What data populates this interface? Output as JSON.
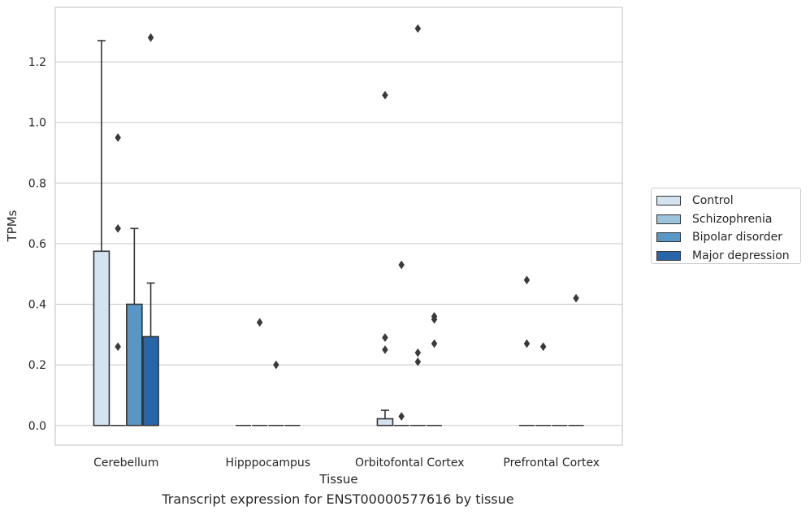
{
  "chart_data": {
    "type": "box",
    "xlabel": "Tissue",
    "ylabel": "TPMs",
    "ylim": [
      -0.065,
      1.38
    ],
    "yticks": [
      0.0,
      0.2,
      0.4,
      0.6,
      0.8,
      1.0,
      1.2
    ],
    "ytick_labels": [
      "0.0",
      "0.2",
      "0.4",
      "0.6",
      "0.8",
      "1.0",
      "1.2"
    ],
    "grid": "horizontal",
    "legend_position": "right",
    "categories": [
      "Cerebellum",
      "Hipppocampus",
      "Orbitofontal Cortex",
      "Prefrontal Cortex"
    ],
    "series": [
      {
        "name": "Control",
        "color": "#d3e3f2",
        "boxes": [
          {
            "q1": 0,
            "median": 0,
            "q3": 0.575,
            "whisker_low": 0,
            "whisker_high": 1.27,
            "outliers": []
          },
          {
            "q1": 0,
            "median": 0,
            "q3": 0,
            "whisker_low": 0,
            "whisker_high": 0,
            "outliers": []
          },
          {
            "q1": 0,
            "median": 0,
            "q3": 0.022,
            "whisker_low": 0,
            "whisker_high": 0.05,
            "outliers": [
              1.09,
              0.29,
              0.25
            ]
          },
          {
            "q1": 0,
            "median": 0,
            "q3": 0,
            "whisker_low": 0,
            "whisker_high": 0,
            "outliers": [
              0.48,
              0.27
            ]
          }
        ]
      },
      {
        "name": "Schizophrenia",
        "color": "#9cc3dd",
        "boxes": [
          {
            "q1": 0,
            "median": 0,
            "q3": 0,
            "whisker_low": 0,
            "whisker_high": 0,
            "outliers": [
              0.95,
              0.65,
              0.26
            ]
          },
          {
            "q1": 0,
            "median": 0,
            "q3": 0,
            "whisker_low": 0,
            "whisker_high": 0,
            "outliers": [
              0.34
            ]
          },
          {
            "q1": 0,
            "median": 0,
            "q3": 0,
            "whisker_low": 0,
            "whisker_high": 0,
            "outliers": [
              0.53,
              0.03
            ]
          },
          {
            "q1": 0,
            "median": 0,
            "q3": 0,
            "whisker_low": 0,
            "whisker_high": 0,
            "outliers": [
              0.26
            ]
          }
        ]
      },
      {
        "name": "Bipolar disorder",
        "color": "#5896c6",
        "boxes": [
          {
            "q1": 0,
            "median": 0,
            "q3": 0.4,
            "whisker_low": 0,
            "whisker_high": 0.65,
            "outliers": []
          },
          {
            "q1": 0,
            "median": 0,
            "q3": 0,
            "whisker_low": 0,
            "whisker_high": 0,
            "outliers": [
              0.2
            ]
          },
          {
            "q1": 0,
            "median": 0,
            "q3": 0,
            "whisker_low": 0,
            "whisker_high": 0,
            "outliers": [
              1.31,
              0.24,
              0.21
            ]
          },
          {
            "q1": 0,
            "median": 0,
            "q3": 0,
            "whisker_low": 0,
            "whisker_high": 0,
            "outliers": []
          }
        ]
      },
      {
        "name": "Major depression",
        "color": "#2766a8",
        "boxes": [
          {
            "q1": 0,
            "median": 0,
            "q3": 0.293,
            "whisker_low": 0,
            "whisker_high": 0.47,
            "outliers": [
              1.28
            ]
          },
          {
            "q1": 0,
            "median": 0,
            "q3": 0,
            "whisker_low": 0,
            "whisker_high": 0,
            "outliers": []
          },
          {
            "q1": 0,
            "median": 0,
            "q3": 0,
            "whisker_low": 0,
            "whisker_high": 0,
            "outliers": [
              0.36,
              0.35,
              0.27
            ]
          },
          {
            "q1": 0,
            "median": 0,
            "q3": 0,
            "whisker_low": 0,
            "whisker_high": 0,
            "outliers": [
              0.42
            ]
          }
        ]
      }
    ]
  },
  "caption": "Transcript expression for ENST00000577616 by tissue"
}
